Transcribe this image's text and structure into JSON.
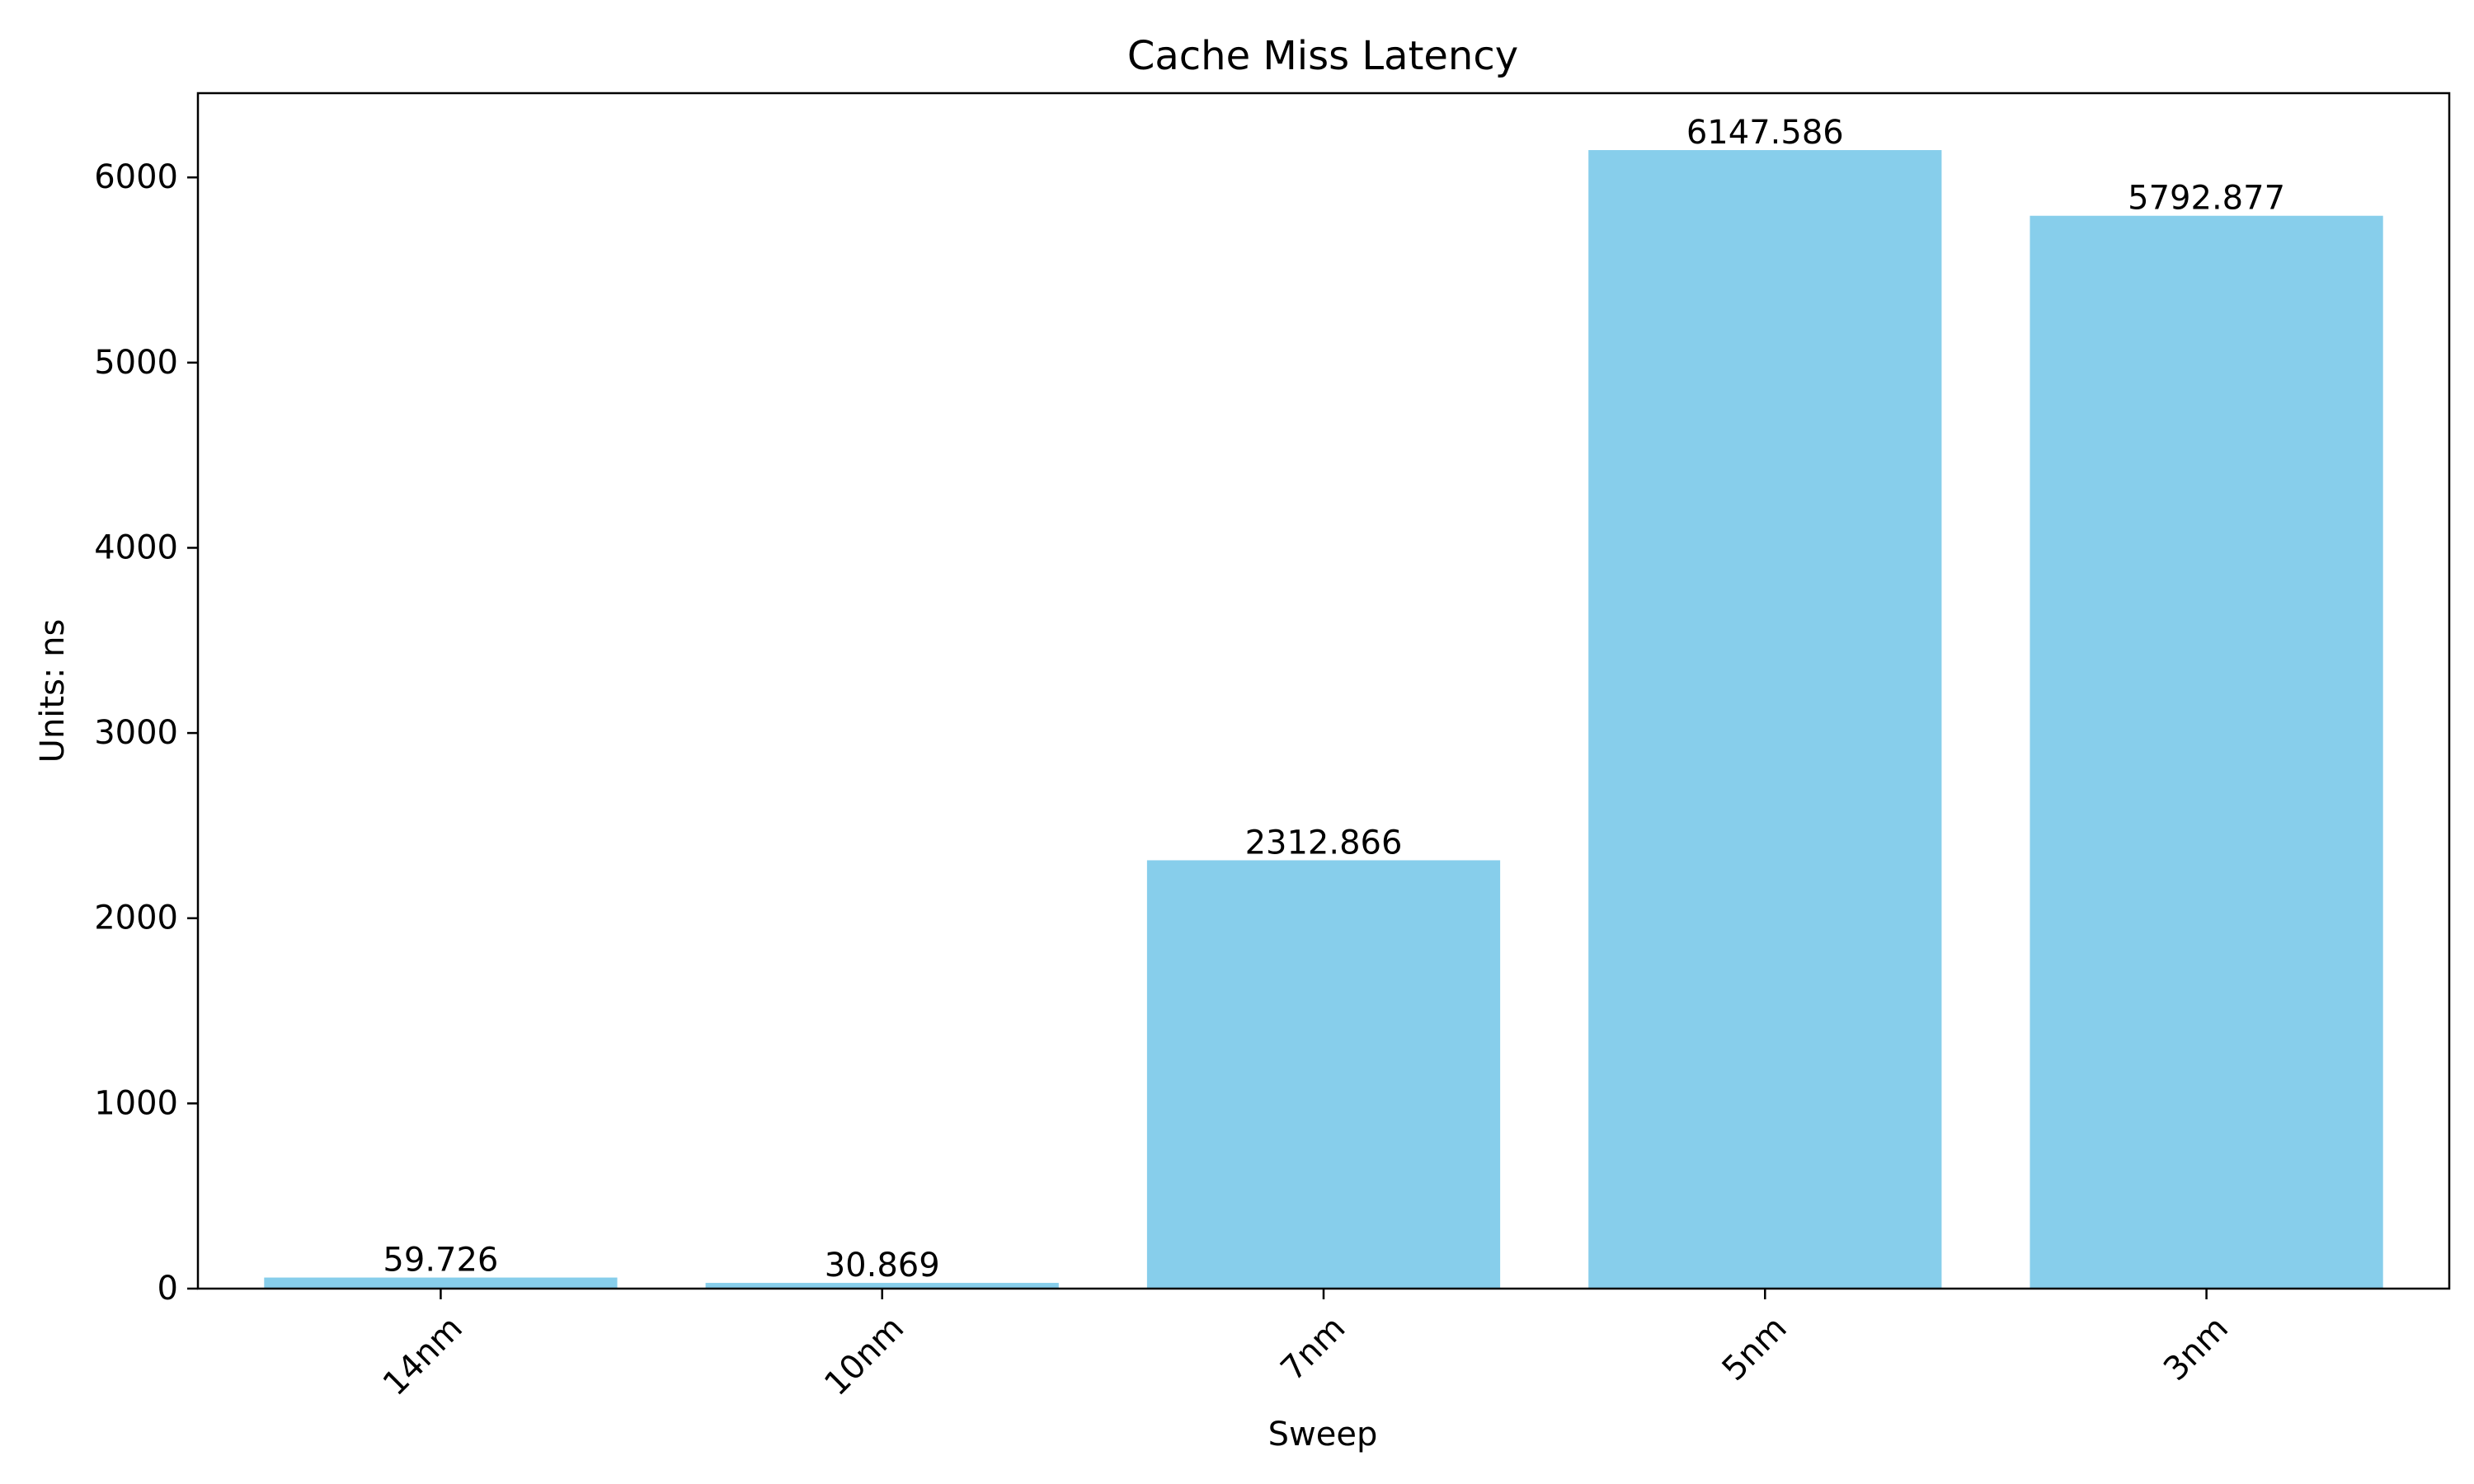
{
  "chart_data": {
    "type": "bar",
    "title": "Cache Miss Latency",
    "xlabel": "Sweep",
    "ylabel": "Units: ns",
    "categories": [
      "14nm",
      "10nm",
      "7nm",
      "5nm",
      "3nm"
    ],
    "values": [
      59.726,
      30.869,
      2312.866,
      6147.586,
      5792.877
    ],
    "value_labels": [
      "59.726",
      "30.869",
      "2312.866",
      "6147.586",
      "5792.877"
    ],
    "ylim": [
      0,
      6454.965
    ],
    "yticks": [
      0,
      1000,
      2000,
      3000,
      4000,
      5000,
      6000
    ],
    "ytick_labels": [
      "0",
      "1000",
      "2000",
      "3000",
      "4000",
      "5000",
      "6000"
    ],
    "grid": false,
    "colors": {
      "bar": "#87ceeb",
      "axis": "#000000",
      "text": "#000000"
    }
  }
}
